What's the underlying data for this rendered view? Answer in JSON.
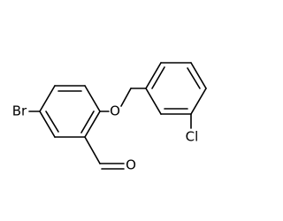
{
  "atoms": [
    {
      "label": "Br"
    },
    {
      "label": "O"
    },
    {
      "label": "O"
    },
    {
      "label": "Cl"
    }
  ]
}
